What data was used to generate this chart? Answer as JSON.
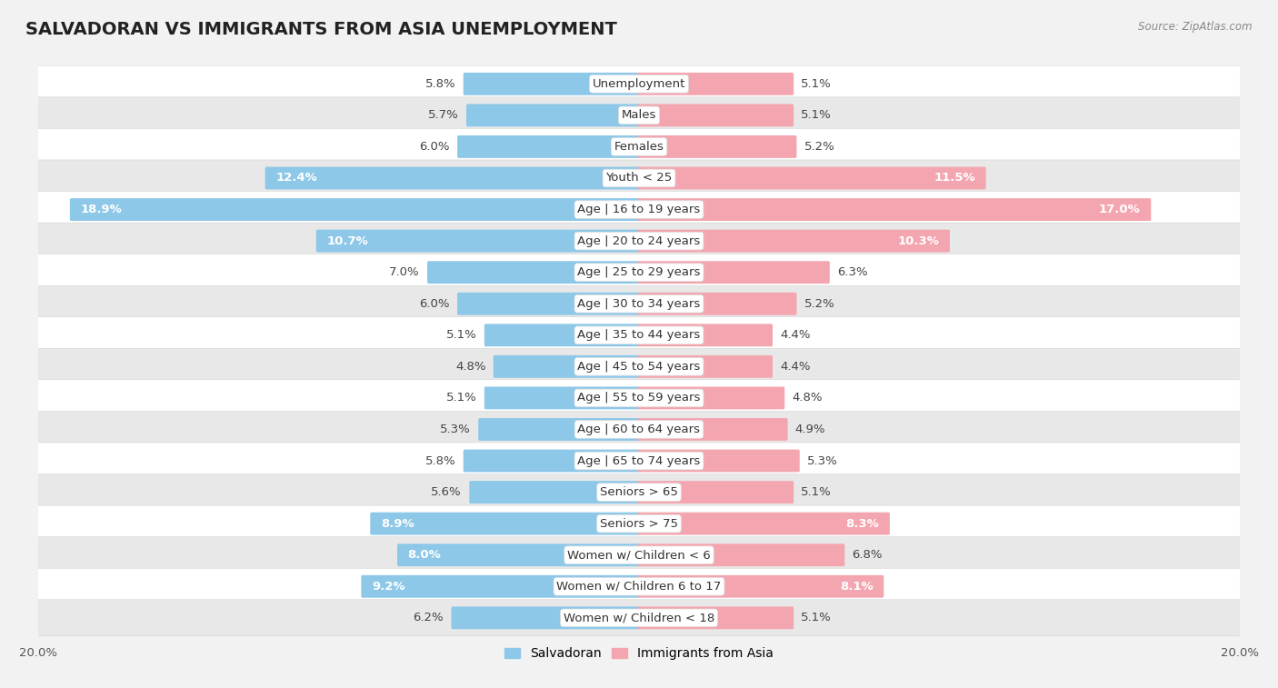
{
  "title": "SALVADORAN VS IMMIGRANTS FROM ASIA UNEMPLOYMENT",
  "source": "Source: ZipAtlas.com",
  "categories": [
    "Unemployment",
    "Males",
    "Females",
    "Youth < 25",
    "Age | 16 to 19 years",
    "Age | 20 to 24 years",
    "Age | 25 to 29 years",
    "Age | 30 to 34 years",
    "Age | 35 to 44 years",
    "Age | 45 to 54 years",
    "Age | 55 to 59 years",
    "Age | 60 to 64 years",
    "Age | 65 to 74 years",
    "Seniors > 65",
    "Seniors > 75",
    "Women w/ Children < 6",
    "Women w/ Children 6 to 17",
    "Women w/ Children < 18"
  ],
  "salvadoran": [
    5.8,
    5.7,
    6.0,
    12.4,
    18.9,
    10.7,
    7.0,
    6.0,
    5.1,
    4.8,
    5.1,
    5.3,
    5.8,
    5.6,
    8.9,
    8.0,
    9.2,
    6.2
  ],
  "asia": [
    5.1,
    5.1,
    5.2,
    11.5,
    17.0,
    10.3,
    6.3,
    5.2,
    4.4,
    4.4,
    4.8,
    4.9,
    5.3,
    5.1,
    8.3,
    6.8,
    8.1,
    5.1
  ],
  "salvadoran_color": "#8dc8e8",
  "asia_color": "#f4a6b0",
  "max_val": 20.0,
  "bg_color": "#f2f2f2",
  "row_light": "#ffffff",
  "row_dark": "#e8e8e8",
  "title_fontsize": 14,
  "label_fontsize": 9.5,
  "tick_fontsize": 9.5,
  "legend_fontsize": 10,
  "value_label_threshold": 8.0
}
